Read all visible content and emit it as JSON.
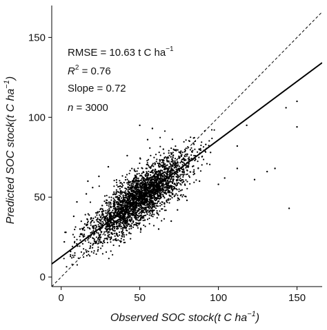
{
  "chart_data": {
    "type": "scatter",
    "xlabel": "Observed SOC stock",
    "ylabel": "Predicted SOC stock",
    "unit_text": "t C ha",
    "unit_exponent": "−1",
    "xlim": [
      -6,
      166
    ],
    "ylim": [
      -6,
      170
    ],
    "x_ticks": [
      0,
      50,
      100,
      150
    ],
    "y_ticks": [
      0,
      50,
      100,
      150
    ],
    "grid": false,
    "annotations": {
      "rmse_text": "RMSE = 10.63 t C ha",
      "rmse_exponent": "−1",
      "r2_symbol": "R",
      "r2_exponent": "2",
      "r2_value": " = 0.76",
      "slope_text": "Slope = 0.72",
      "n_symbol": "n",
      "n_value": " = 3000"
    },
    "reference_line": {
      "type": "1:1",
      "style": "dashed",
      "x": [
        -6,
        166
      ],
      "y": [
        -6,
        166
      ]
    },
    "regression_line": {
      "style": "solid",
      "x": [
        -6,
        166
      ],
      "y": [
        8.2,
        134.2
      ]
    },
    "cloud": {
      "count": 3000,
      "x_mean": 50,
      "x_sd": 16,
      "slope": 0.72,
      "intercept": 13.5,
      "residual_sd": 8
    },
    "outliers": [
      {
        "x": 150,
        "y": 110
      },
      {
        "x": 143,
        "y": 106
      },
      {
        "x": 150,
        "y": 94
      },
      {
        "x": 131,
        "y": 66
      },
      {
        "x": 136,
        "y": 68
      },
      {
        "x": 123,
        "y": 61
      },
      {
        "x": 145,
        "y": 43
      },
      {
        "x": 118,
        "y": 95
      },
      {
        "x": 112,
        "y": 82
      },
      {
        "x": 112,
        "y": 68
      },
      {
        "x": 104,
        "y": 62
      },
      {
        "x": 100,
        "y": 58
      },
      {
        "x": 16,
        "y": 52
      },
      {
        "x": 17,
        "y": 60
      },
      {
        "x": 10,
        "y": 47
      },
      {
        "x": 8,
        "y": 38
      },
      {
        "x": 20,
        "y": 56
      },
      {
        "x": 3,
        "y": 28
      },
      {
        "x": 30,
        "y": 69
      },
      {
        "x": 24,
        "y": 63
      },
      {
        "x": 42,
        "y": 76
      },
      {
        "x": 55,
        "y": 86
      },
      {
        "x": 58,
        "y": 93
      },
      {
        "x": 50,
        "y": 95
      },
      {
        "x": 92,
        "y": 83
      },
      {
        "x": 85,
        "y": 73
      },
      {
        "x": 65,
        "y": 80
      },
      {
        "x": 12,
        "y": 30
      },
      {
        "x": 6,
        "y": 16
      },
      {
        "x": 2,
        "y": 22
      },
      {
        "x": 74,
        "y": 42
      },
      {
        "x": 80,
        "y": 48
      },
      {
        "x": 70,
        "y": 35
      },
      {
        "x": 88,
        "y": 60
      },
      {
        "x": 95,
        "y": 78
      },
      {
        "x": 62,
        "y": 30
      }
    ]
  }
}
